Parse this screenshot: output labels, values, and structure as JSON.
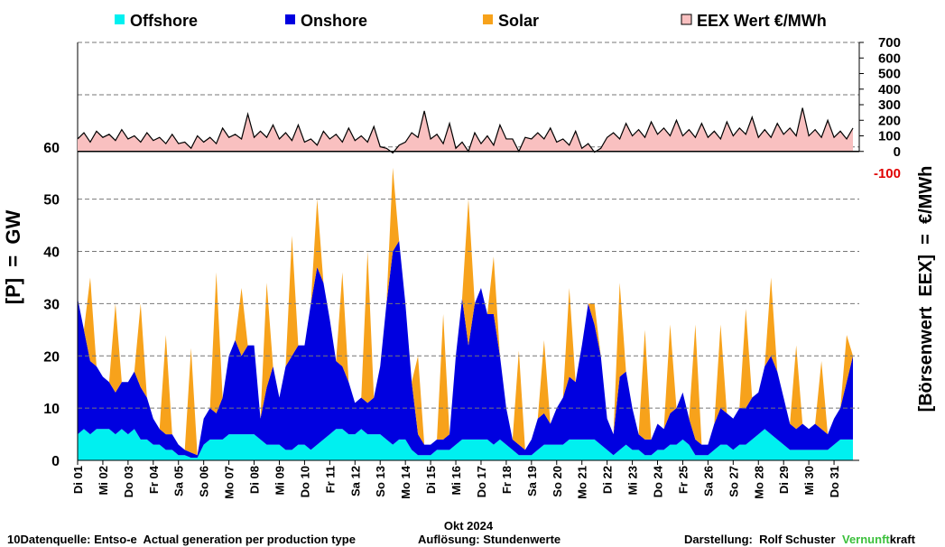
{
  "chart_data": {
    "type": "area",
    "y_label": "[P]  =  GW",
    "y2_label": "[Börsenwert  EEX]  =  €/MWh",
    "x_label": "Okt 2024",
    "xlim": [
      1,
      32
    ],
    "xticks": [
      {
        "value": 1,
        "label": "Di 01"
      },
      {
        "value": 2,
        "label": "Mi 02"
      },
      {
        "value": 3,
        "label": "Do 03"
      },
      {
        "value": 4,
        "label": "Fr 04"
      },
      {
        "value": 5,
        "label": "Sa 05"
      },
      {
        "value": 6,
        "label": "So 06"
      },
      {
        "value": 7,
        "label": "Mo 07"
      },
      {
        "value": 8,
        "label": "Di 08"
      },
      {
        "value": 9,
        "label": "Mi 09"
      },
      {
        "value": 10,
        "label": "Do 10"
      },
      {
        "value": 11,
        "label": "Fr 11"
      },
      {
        "value": 12,
        "label": "Sa 12"
      },
      {
        "value": 13,
        "label": "So 13"
      },
      {
        "value": 14,
        "label": "Mo 14"
      },
      {
        "value": 15,
        "label": "Di 15"
      },
      {
        "value": 16,
        "label": "Mi 16"
      },
      {
        "value": 17,
        "label": "Do 17"
      },
      {
        "value": 18,
        "label": "Fr 18"
      },
      {
        "value": 19,
        "label": "Sa 19"
      },
      {
        "value": 20,
        "label": "So 20"
      },
      {
        "value": 21,
        "label": "Mo 21"
      },
      {
        "value": 22,
        "label": "Di 22"
      },
      {
        "value": 23,
        "label": "Mi 23"
      },
      {
        "value": 24,
        "label": "Do 24"
      },
      {
        "value": 25,
        "label": "Fr 25"
      },
      {
        "value": 26,
        "label": "Sa 26"
      },
      {
        "value": 27,
        "label": "So 27"
      },
      {
        "value": 28,
        "label": "Mo 28"
      },
      {
        "value": 29,
        "label": "Di 29"
      },
      {
        "value": 30,
        "label": "Mi 30"
      },
      {
        "value": 31,
        "label": "Do 31"
      }
    ],
    "ylim": [
      0,
      80
    ],
    "yticks": [
      0,
      10,
      20,
      30,
      40,
      50,
      60
    ],
    "y2lim": [
      -100,
      700
    ],
    "y2ticks": [
      -100,
      0,
      100,
      200,
      300,
      400,
      500,
      600,
      700
    ],
    "grid": true,
    "x": [
      1,
      1.25,
      1.5,
      1.75,
      2,
      2.25,
      2.5,
      2.75,
      3,
      3.25,
      3.5,
      3.75,
      4,
      4.25,
      4.5,
      4.75,
      5,
      5.25,
      5.5,
      5.75,
      6,
      6.25,
      6.5,
      6.75,
      7,
      7.25,
      7.5,
      7.75,
      8,
      8.25,
      8.5,
      8.75,
      9,
      9.25,
      9.5,
      9.75,
      10,
      10.25,
      10.5,
      10.75,
      11,
      11.25,
      11.5,
      11.75,
      12,
      12.25,
      12.5,
      12.75,
      13,
      13.25,
      13.5,
      13.75,
      14,
      14.25,
      14.5,
      14.75,
      15,
      15.25,
      15.5,
      15.75,
      16,
      16.25,
      16.5,
      16.75,
      17,
      17.25,
      17.5,
      17.75,
      18,
      18.25,
      18.5,
      18.75,
      19,
      19.25,
      19.5,
      19.75,
      20,
      20.25,
      20.5,
      20.75,
      21,
      21.25,
      21.5,
      21.75,
      22,
      22.25,
      22.5,
      22.75,
      23,
      23.25,
      23.5,
      23.75,
      24,
      24.25,
      24.5,
      24.75,
      25,
      25.25,
      25.5,
      25.75,
      26,
      26.25,
      26.5,
      26.75,
      27,
      27.25,
      27.5,
      27.75,
      28,
      28.25,
      28.5,
      28.75,
      29,
      29.25,
      29.5,
      29.75,
      30,
      30.25,
      30.5,
      30.75,
      31,
      31.25,
      31.5,
      31.75
    ],
    "series": [
      {
        "name": "Offshore",
        "color": "#00f0f0",
        "values": [
          5,
          6,
          5,
          6,
          6,
          6,
          5,
          6,
          5,
          6,
          4,
          4,
          3,
          3,
          2,
          2,
          1,
          1,
          0.5,
          0.5,
          3,
          4,
          4,
          4,
          5,
          5,
          5,
          5,
          5,
          4,
          3,
          3,
          3,
          2,
          2,
          3,
          3,
          2,
          3,
          4,
          5,
          6,
          6,
          5,
          5,
          6,
          5,
          5,
          5,
          4,
          3,
          4,
          4,
          2,
          1,
          1,
          1,
          2,
          2,
          2,
          3,
          4,
          4,
          4,
          4,
          4,
          3,
          4,
          3,
          2,
          1,
          1,
          1,
          2,
          3,
          3,
          3,
          3,
          4,
          4,
          4,
          4,
          4,
          3,
          2,
          1,
          2,
          3,
          2,
          2,
          1,
          1,
          2,
          2,
          3,
          3,
          4,
          3,
          1,
          1,
          1,
          2,
          3,
          3,
          2,
          3,
          3,
          4,
          5,
          6,
          5,
          4,
          3,
          2,
          2,
          2,
          2,
          2,
          2,
          2,
          3,
          4,
          4,
          4
        ]
      },
      {
        "name": "Onshore",
        "color": "#0000e0",
        "values": [
          26,
          19,
          14,
          12,
          10,
          9,
          8,
          9,
          10,
          11,
          10,
          8,
          5,
          3,
          3,
          3,
          2,
          1,
          1,
          0.5,
          5,
          6,
          5,
          8,
          15,
          18,
          15,
          17,
          17,
          4,
          11,
          15,
          9,
          16,
          18,
          19,
          19,
          28,
          34,
          30,
          22,
          13,
          12,
          10,
          6,
          6,
          6,
          7,
          13,
          26,
          37,
          38,
          26,
          13,
          4,
          2,
          2,
          2,
          2,
          3,
          17,
          27,
          18,
          26,
          29,
          24,
          25,
          16,
          7,
          2,
          2,
          1,
          3,
          6,
          6,
          4,
          7,
          9,
          12,
          11,
          18,
          26,
          22,
          17,
          6,
          4,
          14,
          14,
          8,
          3,
          3,
          3,
          5,
          4,
          6,
          7,
          9,
          5,
          3,
          2,
          2,
          5,
          7,
          6,
          6,
          7,
          7,
          8,
          8,
          12,
          15,
          13,
          9,
          5,
          4,
          5,
          4,
          5,
          4,
          3,
          5,
          6,
          11,
          16
        ]
      },
      {
        "name": "Solar",
        "color": "#f7a21b",
        "values": [
          0,
          0,
          16,
          0,
          0,
          0,
          17,
          0,
          0,
          0,
          16,
          0,
          0,
          0,
          19,
          0,
          0,
          0,
          20,
          0,
          0,
          0,
          27,
          0,
          0,
          0,
          13,
          0,
          0,
          0,
          20,
          0,
          0,
          0,
          23,
          0,
          0,
          0,
          13,
          0,
          0,
          0,
          18,
          0,
          0,
          0,
          29,
          0,
          0,
          0,
          16,
          0,
          0,
          0,
          15,
          0,
          0,
          0,
          24,
          0,
          0,
          0,
          28,
          0,
          0,
          0,
          11,
          0,
          0,
          0,
          18,
          0,
          0,
          0,
          14,
          0,
          0,
          0,
          17,
          0,
          0,
          0,
          4,
          0,
          0,
          0,
          18,
          0,
          0,
          0,
          21,
          0,
          0,
          0,
          17,
          0,
          0,
          0,
          22,
          0,
          0,
          0,
          16,
          0,
          0,
          0,
          19,
          0,
          0,
          0,
          15,
          0,
          0,
          0,
          16,
          0,
          0,
          0,
          13,
          0,
          0,
          0,
          9,
          0
        ]
      },
      {
        "name": "EEX Wert €/MWh",
        "color": "#f9c0c0",
        "axis": "y2",
        "values": [
          80,
          120,
          60,
          130,
          90,
          110,
          70,
          140,
          80,
          100,
          60,
          120,
          70,
          90,
          50,
          110,
          50,
          60,
          20,
          100,
          60,
          90,
          50,
          150,
          90,
          110,
          80,
          240,
          90,
          130,
          90,
          170,
          80,
          120,
          70,
          170,
          60,
          80,
          40,
          130,
          80,
          110,
          60,
          150,
          70,
          100,
          60,
          160,
          30,
          20,
          -10,
          40,
          60,
          120,
          90,
          260,
          80,
          110,
          50,
          180,
          20,
          60,
          0,
          120,
          50,
          100,
          40,
          170,
          80,
          80,
          0,
          90,
          80,
          120,
          80,
          150,
          60,
          80,
          40,
          130,
          20,
          50,
          -5,
          20,
          90,
          120,
          80,
          180,
          100,
          140,
          90,
          190,
          110,
          150,
          100,
          200,
          100,
          140,
          90,
          180,
          90,
          130,
          80,
          190,
          100,
          150,
          110,
          220,
          90,
          140,
          90,
          180,
          110,
          150,
          100,
          280,
          100,
          140,
          90,
          200,
          90,
          130,
          80,
          150
        ]
      }
    ]
  },
  "footer": {
    "source": "10Datenquelle: Entso-e  Actual generation per production type",
    "resolution": "Auflösung: Stundenwerte",
    "author": "Darstellung:  Rolf Schuster",
    "brand_a": "Vernunft",
    "brand_b": "kraft"
  }
}
